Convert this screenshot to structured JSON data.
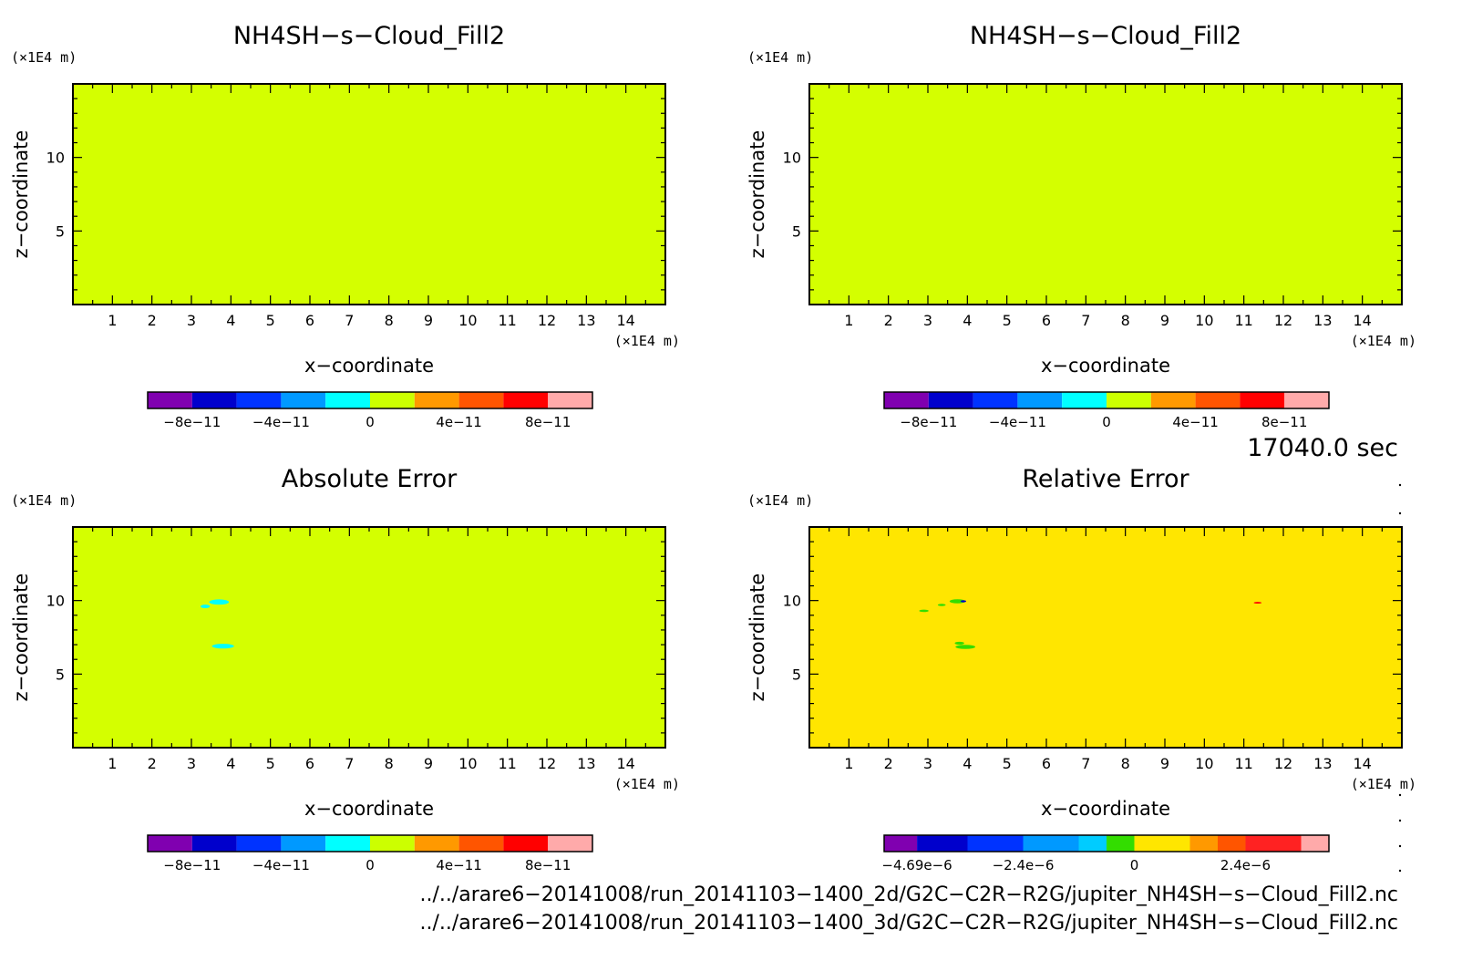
{
  "chart_data": [
    {
      "type": "heatmap",
      "title": "NH4SH−s−Cloud_Fill2",
      "xlabel": "x−coordinate",
      "ylabel": "z−coordinate",
      "x_unit": "(×1E4 m)",
      "y_unit": "(×1E4 m)",
      "xlim": [
        0,
        15
      ],
      "ylim": [
        0,
        15
      ],
      "x_ticks": [
        "1",
        "2",
        "3",
        "4",
        "5",
        "6",
        "7",
        "8",
        "9",
        "10",
        "11",
        "12",
        "13",
        "14"
      ],
      "y_ticks": [
        "5",
        "10"
      ],
      "background_value": 0,
      "background_color": "#d4ff00",
      "features": [],
      "colorbar": {
        "colors": [
          "#8000b0",
          "#0000cc",
          "#0033ff",
          "#0099ff",
          "#00ffff",
          "#ccff00",
          "#ff9900",
          "#ff5500",
          "#ff0000",
          "#ffaaaa"
        ],
        "boundaries": [
          -1e-10,
          -8e-11,
          -6e-11,
          -4e-11,
          -2e-11,
          0,
          2e-11,
          4e-11,
          6e-11,
          8e-11,
          1e-10
        ],
        "tick_labels": [
          "−8e−11",
          "−4e−11",
          "0",
          "4e−11",
          "8e−11"
        ],
        "tick_values": [
          -8e-11,
          -4e-11,
          0,
          4e-11,
          8e-11
        ]
      }
    },
    {
      "type": "heatmap",
      "title": "NH4SH−s−Cloud_Fill2",
      "xlabel": "x−coordinate",
      "ylabel": "z−coordinate",
      "x_unit": "(×1E4 m)",
      "y_unit": "(×1E4 m)",
      "xlim": [
        0,
        15
      ],
      "ylim": [
        0,
        15
      ],
      "x_ticks": [
        "1",
        "2",
        "3",
        "4",
        "5",
        "6",
        "7",
        "8",
        "9",
        "10",
        "11",
        "12",
        "13",
        "14"
      ],
      "y_ticks": [
        "5",
        "10"
      ],
      "background_value": 0,
      "background_color": "#d4ff00",
      "features": [],
      "colorbar": {
        "colors": [
          "#8000b0",
          "#0000cc",
          "#0033ff",
          "#0099ff",
          "#00ffff",
          "#ccff00",
          "#ff9900",
          "#ff5500",
          "#ff0000",
          "#ffaaaa"
        ],
        "boundaries": [
          -1e-10,
          -8e-11,
          -6e-11,
          -4e-11,
          -2e-11,
          0,
          2e-11,
          4e-11,
          6e-11,
          8e-11,
          1e-10
        ],
        "tick_labels": [
          "−8e−11",
          "−4e−11",
          "0",
          "4e−11",
          "8e−11"
        ],
        "tick_values": [
          -8e-11,
          -4e-11,
          0,
          4e-11,
          8e-11
        ]
      }
    },
    {
      "type": "heatmap",
      "title": "Absolute Error",
      "xlabel": "x−coordinate",
      "ylabel": "z−coordinate",
      "x_unit": "(×1E4 m)",
      "y_unit": "(×1E4 m)",
      "xlim": [
        0,
        15
      ],
      "ylim": [
        0,
        15
      ],
      "x_ticks": [
        "1",
        "2",
        "3",
        "4",
        "5",
        "6",
        "7",
        "8",
        "9",
        "10",
        "11",
        "12",
        "13",
        "14"
      ],
      "y_ticks": [
        "5",
        "10"
      ],
      "background_value": 0,
      "background_color": "#d4ff00",
      "features": [
        {
          "x": 3.7,
          "z": 9.9,
          "rx": 0.25,
          "rz": 0.18,
          "color": "#00ffff"
        },
        {
          "x": 3.35,
          "z": 9.6,
          "rx": 0.12,
          "rz": 0.12,
          "color": "#00ffff"
        },
        {
          "x": 3.8,
          "z": 6.9,
          "rx": 0.28,
          "rz": 0.16,
          "color": "#00ffff"
        }
      ],
      "colorbar": {
        "colors": [
          "#8000b0",
          "#0000cc",
          "#0033ff",
          "#0099ff",
          "#00ffff",
          "#ccff00",
          "#ff9900",
          "#ff5500",
          "#ff0000",
          "#ffaaaa"
        ],
        "boundaries": [
          -1e-10,
          -8e-11,
          -6e-11,
          -4e-11,
          -2e-11,
          0,
          2e-11,
          4e-11,
          6e-11,
          8e-11,
          1e-10
        ],
        "tick_labels": [
          "−8e−11",
          "−4e−11",
          "0",
          "4e−11",
          "8e−11"
        ],
        "tick_values": [
          -8e-11,
          -4e-11,
          0,
          4e-11,
          8e-11
        ]
      }
    },
    {
      "type": "heatmap",
      "title": "Relative Error",
      "xlabel": "x−coordinate",
      "ylabel": "z−coordinate",
      "x_unit": "(×1E4 m)",
      "y_unit": "(×1E4 m)",
      "xlim": [
        0,
        15
      ],
      "ylim": [
        0,
        15
      ],
      "x_ticks": [
        "1",
        "2",
        "3",
        "4",
        "5",
        "6",
        "7",
        "8",
        "9",
        "10",
        "11",
        "12",
        "13",
        "14"
      ],
      "y_ticks": [
        "5",
        "10"
      ],
      "background_value": 0,
      "background_color": "#ffe600",
      "features": [
        {
          "x": 3.75,
          "z": 9.95,
          "rx": 0.2,
          "rz": 0.14,
          "color": "#33dd00"
        },
        {
          "x": 3.9,
          "z": 9.95,
          "rx": 0.07,
          "rz": 0.07,
          "color": "#0000cc"
        },
        {
          "x": 3.35,
          "z": 9.7,
          "rx": 0.1,
          "rz": 0.08,
          "color": "#33dd00"
        },
        {
          "x": 2.9,
          "z": 9.3,
          "rx": 0.12,
          "rz": 0.08,
          "color": "#33dd00"
        },
        {
          "x": 3.8,
          "z": 7.1,
          "rx": 0.12,
          "rz": 0.1,
          "color": "#33dd00"
        },
        {
          "x": 3.95,
          "z": 6.85,
          "rx": 0.25,
          "rz": 0.14,
          "color": "#33dd00"
        },
        {
          "x": 11.35,
          "z": 9.85,
          "rx": 0.1,
          "rz": 0.06,
          "color": "#ff0000"
        }
      ],
      "colorbar": {
        "colors": [
          "#8000b0",
          "#0000cc",
          "#0033ff",
          "#0099ff",
          "#00ccff",
          "#33dd00",
          "#ffe600",
          "#ff9900",
          "#ff5500",
          "#ff2222",
          "#ffaaaa"
        ],
        "boundaries": [
          -5.4e-06,
          -4.69e-06,
          -3.6e-06,
          -2.4e-06,
          -1.2e-06,
          -6e-07,
          0,
          1.2e-06,
          1.8e-06,
          2.4e-06,
          3.6e-06,
          4.2e-06
        ],
        "tick_labels": [
          "−4.69e−6",
          "−2.4e−6",
          "0",
          "2.4e−6"
        ],
        "tick_values": [
          -4.69e-06,
          -2.4e-06,
          0,
          2.4e-06
        ]
      }
    }
  ],
  "time_label": "17040.0 sec",
  "footer_lines": [
    "../../arare6−20141008/run_20141103−1400_2d/G2C−C2R−R2G/jupiter_NH4SH−s−Cloud_Fill2.nc",
    "../../arare6−20141008/run_20141103−1400_3d/G2C−C2R−R2G/jupiter_NH4SH−s−Cloud_Fill2.nc"
  ]
}
